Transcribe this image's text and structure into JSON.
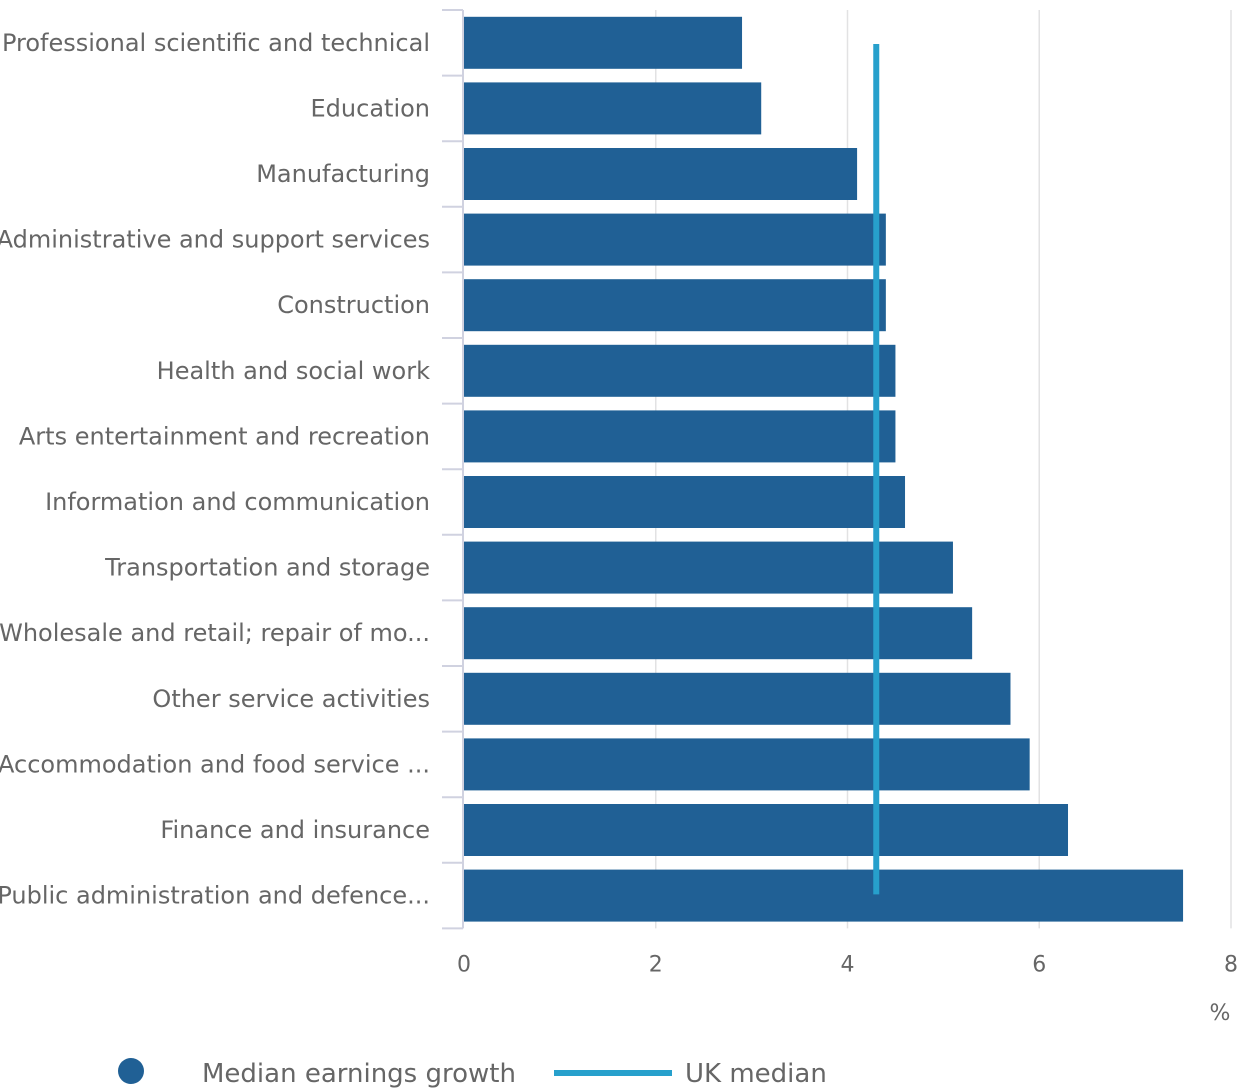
{
  "chart_data": {
    "type": "bar",
    "orientation": "horizontal",
    "categories": [
      "Professional scientific and technical",
      "Education",
      "Manufacturing",
      "Administrative and support services",
      "Construction",
      "Health and social work",
      "Arts entertainment and recreation",
      "Information and communication",
      "Transportation and storage",
      "Wholesale and retail; repair of mo...",
      "Other service activities",
      "Accommodation and food service ...",
      "Finance and insurance",
      "Public administration and defence..."
    ],
    "series": [
      {
        "name": "Median earnings growth",
        "values": [
          2.9,
          3.1,
          4.1,
          4.4,
          4.4,
          4.5,
          4.5,
          4.6,
          5.1,
          5.3,
          5.7,
          5.9,
          6.3,
          7.5
        ],
        "color": "#206095"
      }
    ],
    "reference_line": {
      "name": "UK median",
      "value": 4.3,
      "color": "#27a0cc"
    },
    "x_ticks": [
      "0",
      "2",
      "4",
      "6",
      "8"
    ],
    "xlim": [
      0,
      8
    ],
    "x_unit": "%",
    "title": "",
    "xlabel": "",
    "ylabel": "",
    "grid": "vertical",
    "legend_position": "bottom"
  }
}
